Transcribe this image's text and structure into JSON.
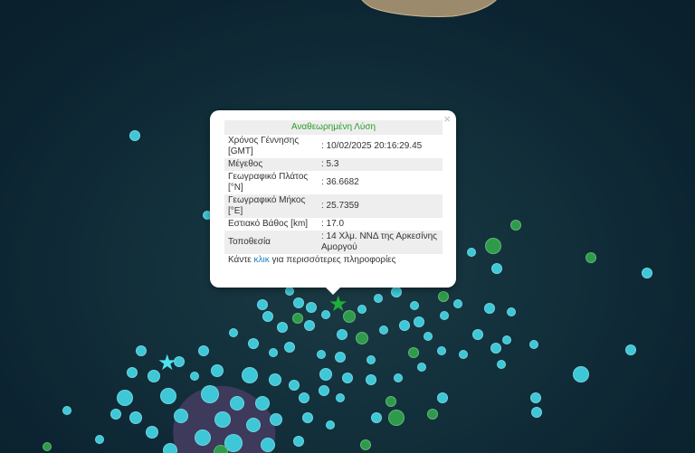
{
  "popup": {
    "title": "Αναθεωρημένη Λύση",
    "close": "×",
    "rows": [
      {
        "label": "Χρόνος Γέννησης [GMT]",
        "value": ": 10/02/2025 20:16:29.45"
      },
      {
        "label": "Μέγεθος",
        "value": ": 5.3"
      },
      {
        "label": "Γεωγραφικό Πλάτος [°N]",
        "value": ": 36.6682"
      },
      {
        "label": "Γεωγραφικό Μήκος [°E]",
        "value": ": 25.7359"
      },
      {
        "label": "Εστιακό Βάθος [km]",
        "value": ": 17.0"
      },
      {
        "label": "Τοποθεσία",
        "value": ": 14 Χλμ. ΝΝΔ της Αρκεσίνης Αμοργού"
      }
    ],
    "footer_pre": "Κάντε ",
    "footer_link": "κλικ",
    "footer_post": " για περισσότερες πληροφορίες"
  },
  "colors": {
    "cyan": "#3ec7d6",
    "green": "#2e9b4a",
    "star_cyan": "#4fe3f0",
    "star_green": "#1fae3a",
    "title": "#2a9a2a",
    "link": "#1a82c4"
  }
}
